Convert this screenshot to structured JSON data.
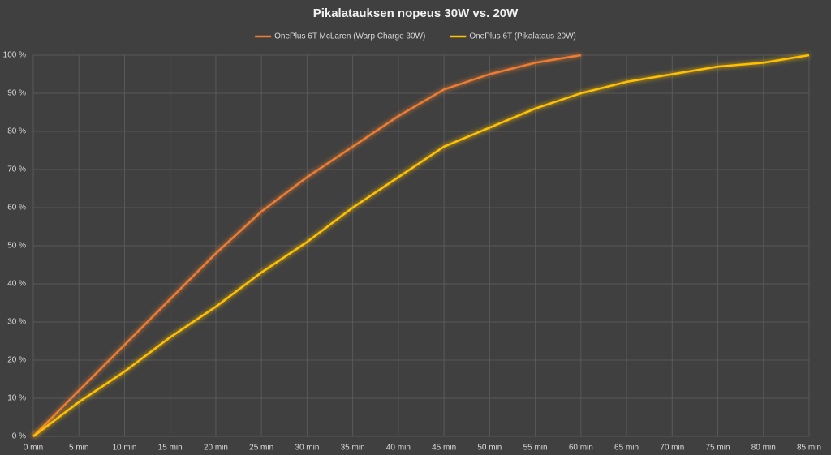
{
  "chart_data": {
    "type": "line",
    "title": "Pikalatauksen nopeus 30W vs. 20W",
    "categories": [
      "0 min",
      "5 min",
      "10 min",
      "15 min",
      "20 min",
      "25 min",
      "30 min",
      "35 min",
      "40 min",
      "45 min",
      "50 min",
      "55 min",
      "60 min",
      "65 min",
      "70 min",
      "75 min",
      "80 min",
      "85 min"
    ],
    "series": [
      {
        "name": "OnePlus 6T McLaren (Warp Charge 30W)",
        "color": "#ed7d31",
        "values": [
          0,
          12,
          24,
          36,
          48,
          59,
          68,
          76,
          84,
          91,
          95,
          98,
          100,
          null,
          null,
          null,
          null,
          null
        ]
      },
      {
        "name": "OnePlus 6T (Pikalataus 20W)",
        "color": "#ffc000",
        "values": [
          0,
          9,
          17,
          26,
          34,
          43,
          51,
          60,
          68,
          76,
          81,
          86,
          90,
          93,
          95,
          97,
          98,
          100
        ]
      }
    ],
    "ylim": [
      0,
      100
    ],
    "yticks": [
      {
        "value": 0,
        "label": "0 %"
      },
      {
        "value": 10,
        "label": "10 %"
      },
      {
        "value": 20,
        "label": "20 %"
      },
      {
        "value": 30,
        "label": "30 %"
      },
      {
        "value": 40,
        "label": "40 %"
      },
      {
        "value": 50,
        "label": "50 %"
      },
      {
        "value": 60,
        "label": "60 %"
      },
      {
        "value": 70,
        "label": "70 %"
      },
      {
        "value": 80,
        "label": "80 %"
      },
      {
        "value": 90,
        "label": "90 %"
      },
      {
        "value": 100,
        "label": "100 %"
      }
    ],
    "grid": true,
    "legend": "top"
  }
}
